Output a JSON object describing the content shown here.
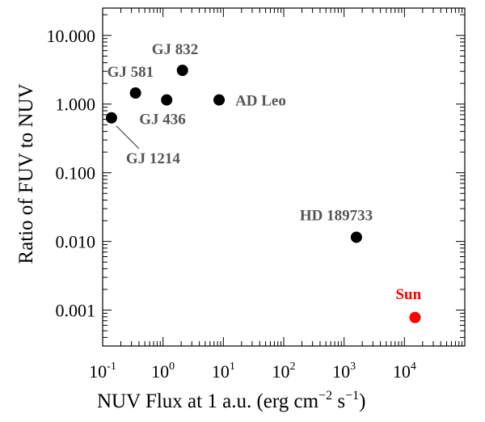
{
  "chart_data": {
    "type": "scatter",
    "title": "",
    "xlabel": "NUV Flux at 1 a.u. (erg cm",
    "xlabel_units": {
      "exp1": "−2",
      "mid": " s",
      "exp2": "−1",
      "close": ")"
    },
    "ylabel": "Ratio of FUV to NUV",
    "x_scale": "log",
    "y_scale": "log",
    "xlim": [
      0.1,
      100000
    ],
    "ylim": [
      0.0003,
      25
    ],
    "grid": false,
    "legend": "none",
    "x_ticks": [
      {
        "value": 0.1,
        "base": "10",
        "exp": "-1"
      },
      {
        "value": 1,
        "base": "10",
        "exp": "0"
      },
      {
        "value": 10,
        "base": "10",
        "exp": "1"
      },
      {
        "value": 100,
        "base": "10",
        "exp": "2"
      },
      {
        "value": 1000,
        "base": "10",
        "exp": "3"
      },
      {
        "value": 10000,
        "base": "10",
        "exp": "4"
      }
    ],
    "y_ticks": [
      {
        "value": 10,
        "label": "10.000"
      },
      {
        "value": 1,
        "label": "1.000"
      },
      {
        "value": 0.1,
        "label": "0.100"
      },
      {
        "value": 0.01,
        "label": "0.010"
      },
      {
        "value": 0.001,
        "label": "0.001"
      }
    ],
    "points": [
      {
        "name": "GJ 1214",
        "x": 0.14,
        "y": 0.63,
        "color": "#000000",
        "label_color": "#555555"
      },
      {
        "name": "GJ 581",
        "x": 0.35,
        "y": 1.45,
        "color": "#000000",
        "label_color": "#555555"
      },
      {
        "name": "GJ 436",
        "x": 1.15,
        "y": 1.15,
        "color": "#000000",
        "label_color": "#555555"
      },
      {
        "name": "GJ 832",
        "x": 2.1,
        "y": 3.1,
        "color": "#000000",
        "label_color": "#555555"
      },
      {
        "name": "AD Leo",
        "x": 8.5,
        "y": 1.15,
        "color": "#000000",
        "label_color": "#555555"
      },
      {
        "name": "HD 189733",
        "x": 1600,
        "y": 0.0115,
        "color": "#000000",
        "label_color": "#555555"
      },
      {
        "name": "Sun",
        "x": 15000,
        "y": 0.00078,
        "color": "#ff0000",
        "label_color": "#ff0000"
      }
    ]
  }
}
